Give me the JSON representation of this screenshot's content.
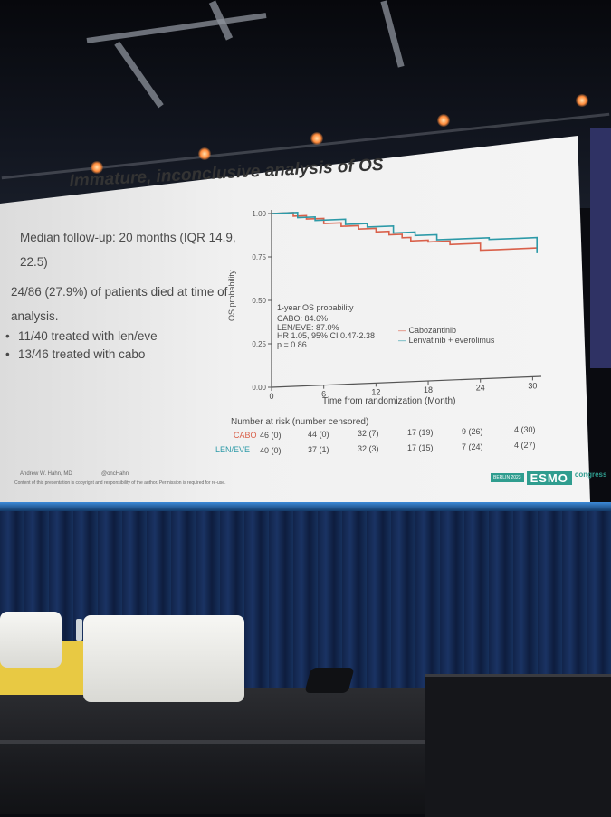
{
  "slide": {
    "title": "Immature, inconclusive analysis of OS",
    "followup_line1": "Median follow-up: 20 months (IQR 14.9,",
    "followup_line2": "22.5)",
    "died_line1": "24/86 (27.9%) of patients died at time of",
    "died_line2": "analysis.",
    "bullet_leneve": "11/40 treated with len/eve",
    "bullet_cabo": "13/46 treated with cabo",
    "author": "Andrew W. Hahn, MD",
    "handle": "@oncHahn",
    "disclaimer": "Content of this presentation is copyright and responsibility of the author. Permission is required for re-use.",
    "logo_badge": "BERLIN 2023",
    "logo_word": "ESMO",
    "logo_sub": "congress"
  },
  "chart_data": {
    "type": "line",
    "ylabel": "OS probability",
    "xlabel": "Time from randomization (Month)",
    "x_ticks": [
      "0",
      "6",
      "12",
      "18",
      "24",
      "30"
    ],
    "y_ticks": [
      "0.00",
      "0.25",
      "0.50",
      "0.75",
      "1.00"
    ],
    "xlim": [
      0,
      31
    ],
    "ylim": [
      0,
      1
    ],
    "annotation": {
      "header": "1-year OS probability",
      "cabo": "CABO: 84.6%",
      "leneve": "LEN/EVE: 87.0%",
      "hr": "HR 1.05, 95% CI 0.47-2.38",
      "p": "p = 0.86"
    },
    "legend_position": "lower-right",
    "series": [
      {
        "name": "Cabozantinib",
        "color": "#d9604a",
        "x": [
          0,
          2.5,
          2.5,
          4,
          4,
          6,
          6,
          8,
          8,
          10,
          10,
          12,
          12,
          13.5,
          13.5,
          15,
          15,
          16,
          16,
          18,
          18,
          20.5,
          20.5,
          24,
          24,
          26,
          26,
          30.5
        ],
        "y": [
          1.0,
          1.0,
          0.98,
          0.98,
          0.96,
          0.96,
          0.93,
          0.93,
          0.91,
          0.91,
          0.89,
          0.89,
          0.87,
          0.87,
          0.85,
          0.85,
          0.83,
          0.83,
          0.81,
          0.81,
          0.8,
          0.8,
          0.78,
          0.78,
          0.74,
          0.74,
          0.74,
          0.74
        ]
      },
      {
        "name": "Lenvatinib + everolimus",
        "color": "#2d9aa8",
        "x": [
          0,
          3,
          3,
          5,
          5,
          8.5,
          8.5,
          11,
          11,
          14,
          14,
          16.5,
          16.5,
          19,
          19,
          23,
          23,
          25,
          25,
          28.5,
          28.5,
          30.5,
          30.5
        ],
        "y": [
          1.0,
          1.0,
          0.97,
          0.97,
          0.95,
          0.95,
          0.92,
          0.92,
          0.9,
          0.9,
          0.86,
          0.86,
          0.84,
          0.84,
          0.81,
          0.81,
          0.81,
          0.81,
          0.8,
          0.8,
          0.8,
          0.8,
          0.71
        ]
      }
    ],
    "risk_table": {
      "header": "Number at risk (number censored)",
      "rows": [
        {
          "label": "CABO",
          "color": "#d9604a",
          "values": [
            "46 (0)",
            "44 (0)",
            "32 (7)",
            "17 (19)",
            "9 (26)",
            "4 (30)"
          ]
        },
        {
          "label": "LEN/EVE",
          "color": "#2d9aa8",
          "values": [
            "40 (0)",
            "37 (1)",
            "32 (3)",
            "17 (15)",
            "7 (24)",
            "4 (27)"
          ]
        }
      ]
    }
  }
}
